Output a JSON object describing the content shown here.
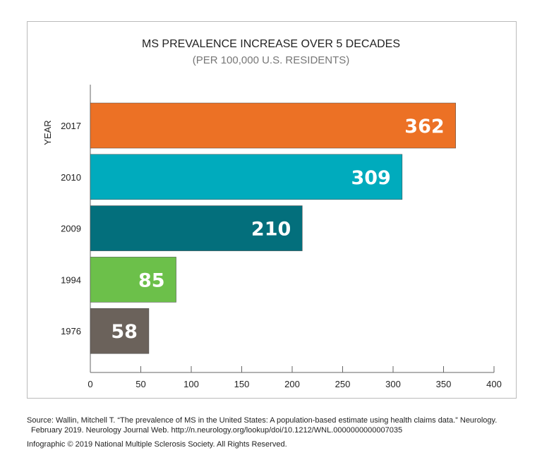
{
  "chart_data": {
    "type": "bar",
    "orientation": "horizontal",
    "title": "MS PREVALENCE INCREASE OVER 5 DECADES",
    "subtitle": "(PER 100,000 U.S. RESIDENTS)",
    "ylabel": "YEAR",
    "xlabel": "",
    "categories": [
      "2017",
      "2010",
      "2009",
      "1994",
      "1976"
    ],
    "values": [
      362,
      309,
      210,
      85,
      58
    ],
    "colors": [
      "#ec7125",
      "#00abbd",
      "#036f7c",
      "#6cc04a",
      "#6b625b"
    ],
    "xlim": [
      0,
      400
    ],
    "xticks": [
      0,
      50,
      100,
      150,
      200,
      250,
      300,
      350,
      400
    ],
    "grid": false
  },
  "source": {
    "line1": "Source: Wallin, Mitchell T. “The prevalence of MS in the United States: A population-based estimate using health claims data.” Neurology.",
    "line2": "February 2019. Neurology Journal Web. http://n.neurology.org/lookup/doi/10.1212/WNL.0000000000007035",
    "copyright": "Infographic © 2019 National Multiple Sclerosis Society. All Rights Reserved."
  }
}
